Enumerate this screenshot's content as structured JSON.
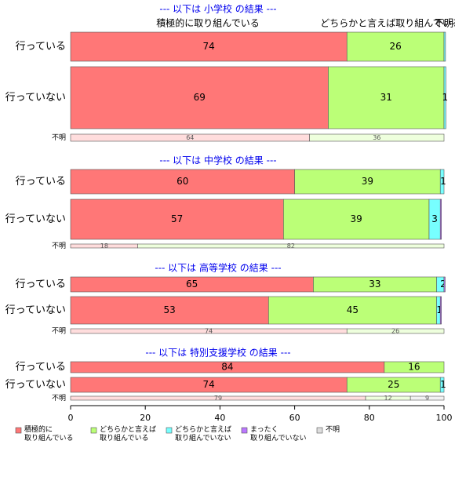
{
  "colors": {
    "active": "#FF7777",
    "somewhat_active": "#BBFF77",
    "somewhat_inactive": "#77FFFF",
    "inactive": "#BB77FF",
    "unknown": "#DDDDDD",
    "title": "#0000EE"
  },
  "chart_data": {
    "type": "bar",
    "orientation": "horizontal",
    "stacked": true,
    "xlim": [
      0,
      100
    ],
    "x_ticks": [
      "0",
      "20",
      "40",
      "60",
      "80",
      "100"
    ],
    "top_column_labels": [
      "積極的に取り組んでいる",
      "どちらかと言えば取り組んでいる",
      "不明"
    ],
    "legend": {
      "position": "bottom",
      "entries": [
        {
          "key": "active",
          "label_lines": [
            "積極的に",
            "取り組んでいる"
          ]
        },
        {
          "key": "somewhat_active",
          "label_lines": [
            "どちらかと言えば",
            "取り組んでいる"
          ]
        },
        {
          "key": "somewhat_inactive",
          "label_lines": [
            "どちらかと言えば",
            "取り組んでいない"
          ]
        },
        {
          "key": "inactive",
          "label_lines": [
            "まったく",
            "取り組んでいない"
          ]
        },
        {
          "key": "unknown",
          "label_lines": [
            "不明"
          ]
        }
      ]
    },
    "panels": [
      {
        "title": "--- 以下は 小学校 の結果 ---",
        "rows": [
          {
            "label": "行っている",
            "values": [
              74,
              26,
              0.4,
              0,
              0
            ],
            "labels": [
              "74",
              "26",
              "",
              "",
              ""
            ]
          },
          {
            "label": "行っていない",
            "values": [
              69,
              31,
              0.5,
              0,
              0
            ],
            "labels": [
              "69",
              "31",
              "1",
              "",
              ""
            ]
          },
          {
            "label": "不明",
            "small": true,
            "values": [
              64,
              36,
              0,
              0,
              0
            ],
            "labels": [
              "64",
              "36",
              "",
              "",
              ""
            ]
          }
        ]
      },
      {
        "title": "--- 以下は 中学校 の結果 ---",
        "rows": [
          {
            "label": "行っている",
            "values": [
              60,
              39,
              1,
              0,
              0
            ],
            "labels": [
              "60",
              "39",
              "1",
              "",
              ""
            ]
          },
          {
            "label": "行っていない",
            "values": [
              57,
              39,
              3,
              0.3,
              0
            ],
            "labels": [
              "57",
              "39",
              "3",
              "",
              ""
            ]
          },
          {
            "label": "不明",
            "small": true,
            "values": [
              18,
              82,
              0,
              0,
              0
            ],
            "labels": [
              "18",
              "82",
              "",
              "",
              ""
            ]
          }
        ]
      },
      {
        "title": "--- 以下は 高等学校 の結果 ---",
        "rows": [
          {
            "label": "行っている",
            "values": [
              65,
              33,
              2,
              0.3,
              0
            ],
            "labels": [
              "65",
              "33",
              "2",
              "",
              ""
            ]
          },
          {
            "label": "行っていない",
            "values": [
              53,
              45,
              1,
              0.3,
              0
            ],
            "labels": [
              "53",
              "45",
              "1",
              "",
              ""
            ]
          },
          {
            "label": "不明",
            "small": true,
            "values": [
              74,
              26,
              0,
              0,
              0
            ],
            "labels": [
              "74",
              "26",
              "",
              "",
              ""
            ]
          }
        ]
      },
      {
        "title": "--- 以下は 特別支援学校 の結果 ---",
        "rows": [
          {
            "label": "行っている",
            "values": [
              84,
              16,
              0,
              0,
              0
            ],
            "labels": [
              "84",
              "16",
              "",
              "",
              ""
            ]
          },
          {
            "label": "行っていない",
            "values": [
              74,
              25,
              1,
              0,
              0
            ],
            "labels": [
              "74",
              "25",
              "1",
              "",
              ""
            ]
          },
          {
            "label": "不明",
            "small": true,
            "values": [
              79,
              12,
              0,
              0,
              9
            ],
            "labels": [
              "79",
              "12",
              "",
              "",
              "9"
            ]
          }
        ]
      }
    ]
  }
}
